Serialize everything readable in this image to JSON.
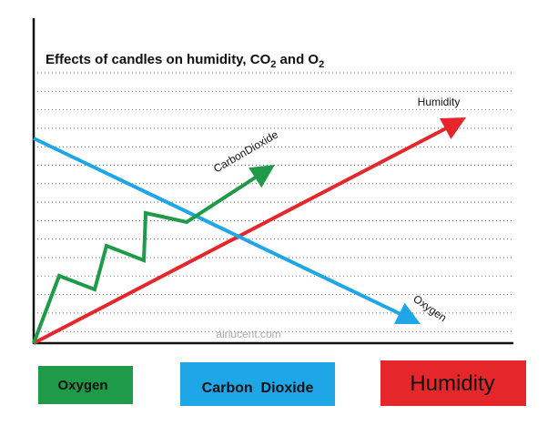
{
  "title": {
    "parts": [
      "Effects of candles on humidity, CO",
      "2",
      " and O",
      "2"
    ]
  },
  "labels": {
    "humidity": "Humidity",
    "carbon_dioxide": "CarbonDioxide",
    "oxygen": "Oxygen"
  },
  "watermark": "airlucent.com",
  "legend": {
    "items": [
      "Oxygen",
      "Carbon  Dioxide",
      "Humidity"
    ]
  }
}
